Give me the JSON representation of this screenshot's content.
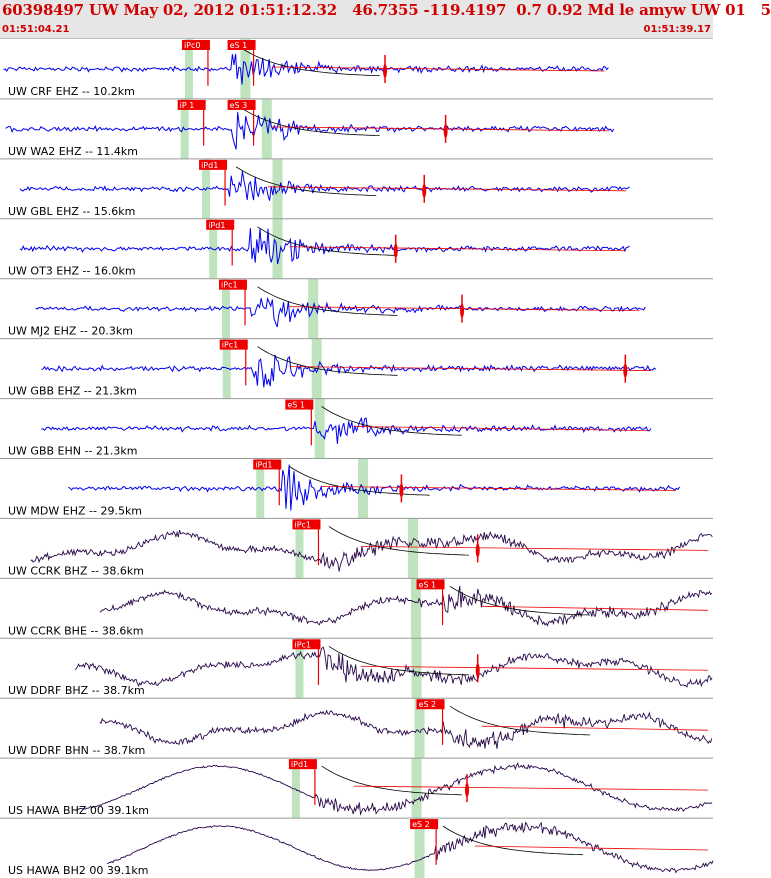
{
  "header": {
    "title": "60398497 UW May 02, 2012 01:51:12.32   46.7355 -119.4197  0.7 0.92 Md le amyw UW 01   5",
    "time_start": "01:51:04.21",
    "time_end": "01:51:39.17"
  },
  "colors": {
    "header_text": "#d00000",
    "blue_trace": "#0000ee",
    "dark_trace": "#2a0a4a",
    "pick": "#ee0000",
    "window": "#bfe3bf",
    "separator": "#9a9a9a"
  },
  "traces": [
    {
      "label": "UW CRF EHZ -- 10.2km",
      "kind": "hf",
      "color": "blue",
      "picks": [
        {
          "name": "iPc0",
          "t": 0.258
        },
        {
          "name": "eS 1",
          "t": 0.322
        }
      ],
      "onset": 0.325,
      "coda_end": 0.855,
      "amp_idx": 0.54,
      "window_s": 0.34
    },
    {
      "label": "UW WA2 EHZ -- 11.4km",
      "kind": "hf",
      "color": "blue",
      "picks": [
        {
          "name": "iP 1",
          "t": 0.252
        },
        {
          "name": "eS 3",
          "t": 0.322
        }
      ],
      "onset": 0.325,
      "coda_end": 0.862,
      "amp_idx": 0.625,
      "window_s": 0.37
    },
    {
      "label": "UW GBL EHZ -- 15.6km",
      "kind": "hf",
      "color": "blue",
      "picks": [
        {
          "name": "iPd1",
          "t": 0.282
        }
      ],
      "onset": 0.32,
      "coda_end": 0.885,
      "amp_idx": 0.595,
      "window_s": 0.385
    },
    {
      "label": "UW OT3 EHZ -- 16.0km",
      "kind": "hf",
      "color": "blue",
      "picks": [
        {
          "name": "iPd1",
          "t": 0.292
        }
      ],
      "onset": 0.35,
      "coda_end": 0.885,
      "amp_idx": 0.555,
      "window_s": 0.385
    },
    {
      "label": "UW MJ2 EHZ -- 20.3km",
      "kind": "hf",
      "color": "blue",
      "picks": [
        {
          "name": "iPc1",
          "t": 0.31
        }
      ],
      "onset": 0.35,
      "coda_end": 0.905,
      "amp_idx": 0.648,
      "window_s": 0.435
    },
    {
      "label": "UW GBB EHZ -- 21.3km",
      "kind": "hf",
      "color": "blue",
      "picks": [
        {
          "name": "iPc1",
          "t": 0.311
        }
      ],
      "onset": 0.35,
      "coda_end": 0.92,
      "amp_idx": 0.877,
      "window_s": 0.44
    },
    {
      "label": "UW GBB EHN -- 21.3km",
      "kind": "hf",
      "color": "blue",
      "picks": [
        {
          "name": "eS 1",
          "t": 0.403
        }
      ],
      "onset": 0.44,
      "coda_end": 0.915,
      "amp_idx": -1,
      "window_s": 0.44
    },
    {
      "label": "UW MDW EHZ -- 29.5km",
      "kind": "hf",
      "color": "blue",
      "picks": [
        {
          "name": "iPd1",
          "t": 0.358
        }
      ],
      "onset": 0.395,
      "coda_end": 0.955,
      "amp_idx": 0.563,
      "window_s": 0.505
    },
    {
      "label": "UW CCRK BHZ -- 38.6km",
      "kind": "lp",
      "color": "dark",
      "picks": [
        {
          "name": "iPc1",
          "t": 0.413
        }
      ],
      "onset": 0.45,
      "coda_end": 1.0,
      "amp_idx": 0.67,
      "window_s": 0.575
    },
    {
      "label": "UW CCRK BHE -- 38.6km",
      "kind": "lp",
      "color": "dark",
      "picks": [
        {
          "name": "eS 1",
          "t": 0.587
        }
      ],
      "onset": 0.62,
      "coda_end": 1.0,
      "amp_idx": -1,
      "window_s": 0.575
    },
    {
      "label": "UW DDRF BHZ -- 38.7km",
      "kind": "lp",
      "color": "dark",
      "picks": [
        {
          "name": "iPc1",
          "t": 0.413
        }
      ],
      "onset": 0.45,
      "coda_end": 1.0,
      "amp_idx": 0.67,
      "window_s": 0.58
    },
    {
      "label": "UW DDRF BHN -- 38.7km",
      "kind": "lp",
      "color": "dark",
      "picks": [
        {
          "name": "eS 2",
          "t": 0.587
        }
      ],
      "onset": 0.62,
      "coda_end": 1.0,
      "amp_idx": -1,
      "window_s": 0.58
    },
    {
      "label": "US HAWA BHZ 00 39.1km",
      "kind": "vlp",
      "color": "dark",
      "picks": [
        {
          "name": "iPd1",
          "t": 0.408
        }
      ],
      "onset": 0.44,
      "coda_end": 1.0,
      "amp_idx": 0.655,
      "window_s": 0.58
    },
    {
      "label": "US HAWA BH2 00 39.1km",
      "kind": "vlp",
      "color": "dark",
      "picks": [
        {
          "name": "eS 2",
          "t": 0.578
        }
      ],
      "onset": 0.61,
      "coda_end": 1.0,
      "amp_idx": -1,
      "window_s": 0.58
    }
  ]
}
